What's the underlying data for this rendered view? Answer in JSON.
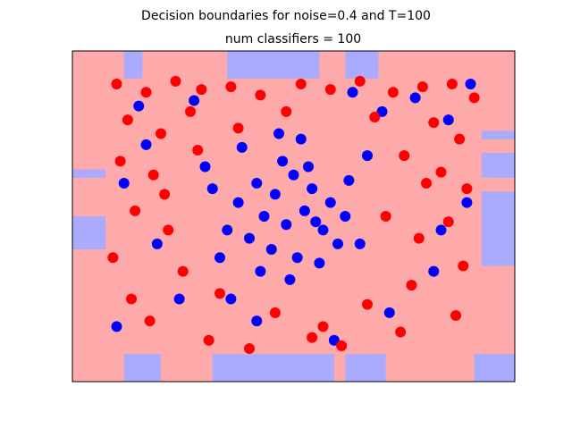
{
  "chart_data": {
    "type": "scatter",
    "title": "Decision boundaries for noise=0.4 and T=100",
    "subtitle": "num classifiers = 100",
    "xlim": [
      -0.1,
      1.1
    ],
    "ylim": [
      -0.1,
      1.1
    ],
    "background_color": "#ffaaaa",
    "region_color": "#aaaaff",
    "regions": [
      {
        "x": [
          0.04,
          0.09
        ],
        "y": [
          1.0,
          1.1
        ]
      },
      {
        "x": [
          0.32,
          0.57
        ],
        "y": [
          1.0,
          1.1
        ]
      },
      {
        "x": [
          0.64,
          0.73
        ],
        "y": [
          1.0,
          1.1
        ]
      },
      {
        "x": [
          -0.1,
          -0.01
        ],
        "y": [
          0.64,
          0.67
        ]
      },
      {
        "x": [
          -0.1,
          -0.01
        ],
        "y": [
          0.38,
          0.5
        ]
      },
      {
        "x": [
          1.01,
          1.1
        ],
        "y": [
          0.78,
          0.81
        ]
      },
      {
        "x": [
          1.01,
          1.1
        ],
        "y": [
          0.64,
          0.73
        ]
      },
      {
        "x": [
          1.01,
          1.1
        ],
        "y": [
          0.32,
          0.59
        ]
      },
      {
        "x": [
          0.04,
          0.14
        ],
        "y": [
          -0.1,
          0.0
        ]
      },
      {
        "x": [
          0.28,
          0.61
        ],
        "y": [
          -0.1,
          0.0
        ]
      },
      {
        "x": [
          0.64,
          0.75
        ],
        "y": [
          -0.1,
          0.0
        ]
      },
      {
        "x": [
          0.99,
          1.1
        ],
        "y": [
          -0.1,
          0.0
        ]
      }
    ],
    "series": [
      {
        "color": "#0000ff",
        "x": [
          0.4,
          0.45,
          0.5,
          0.55,
          0.6,
          0.42,
          0.48,
          0.53,
          0.58,
          0.62,
          0.38,
          0.44,
          0.51,
          0.56,
          0.35,
          0.47,
          0.54,
          0.65,
          0.32,
          0.41,
          0.49,
          0.57,
          0.64,
          0.36,
          0.46,
          0.52,
          0.28,
          0.3,
          0.68,
          0.7,
          0.08,
          0.04,
          0.13,
          0.92,
          0.97,
          0.88,
          0.19,
          0.23,
          0.76,
          0.83,
          0.4,
          0.61,
          0.02,
          0.98,
          0.26,
          0.74,
          0.33,
          0.66,
          0.1,
          0.9
        ],
        "values": [
          0.62,
          0.58,
          0.65,
          0.6,
          0.55,
          0.5,
          0.47,
          0.52,
          0.45,
          0.4,
          0.42,
          0.38,
          0.35,
          0.48,
          0.55,
          0.7,
          0.68,
          0.63,
          0.45,
          0.3,
          0.27,
          0.33,
          0.5,
          0.75,
          0.8,
          0.78,
          0.6,
          0.35,
          0.4,
          0.72,
          0.9,
          0.62,
          0.4,
          0.85,
          0.55,
          0.3,
          0.2,
          0.92,
          0.15,
          0.93,
          0.12,
          0.05,
          0.1,
          0.98,
          0.68,
          0.88,
          0.2,
          0.95,
          0.76,
          0.45
        ]
      },
      {
        "color": "#ff0000",
        "x": [
          0.02,
          0.1,
          0.18,
          0.25,
          0.33,
          0.41,
          0.52,
          0.6,
          0.68,
          0.77,
          0.85,
          0.93,
          0.99,
          0.05,
          0.14,
          0.22,
          0.88,
          0.95,
          0.03,
          0.12,
          0.8,
          0.9,
          0.97,
          0.07,
          0.16,
          0.75,
          0.84,
          0.92,
          0.01,
          0.2,
          0.3,
          0.45,
          0.58,
          0.7,
          0.82,
          0.96,
          0.11,
          0.27,
          0.63,
          0.79,
          0.38,
          0.55,
          0.06,
          0.94,
          0.15,
          0.86,
          0.48,
          0.35,
          0.72,
          0.24
        ],
        "values": [
          0.98,
          0.95,
          0.99,
          0.96,
          0.97,
          0.94,
          0.98,
          0.96,
          0.99,
          0.95,
          0.97,
          0.98,
          0.93,
          0.85,
          0.8,
          0.88,
          0.84,
          0.78,
          0.7,
          0.65,
          0.72,
          0.66,
          0.6,
          0.52,
          0.45,
          0.5,
          0.42,
          0.48,
          0.35,
          0.3,
          0.22,
          0.15,
          0.1,
          0.18,
          0.25,
          0.32,
          0.12,
          0.05,
          0.03,
          0.08,
          0.02,
          0.06,
          0.2,
          0.14,
          0.58,
          0.62,
          0.88,
          0.82,
          0.86,
          0.74
        ]
      }
    ]
  }
}
